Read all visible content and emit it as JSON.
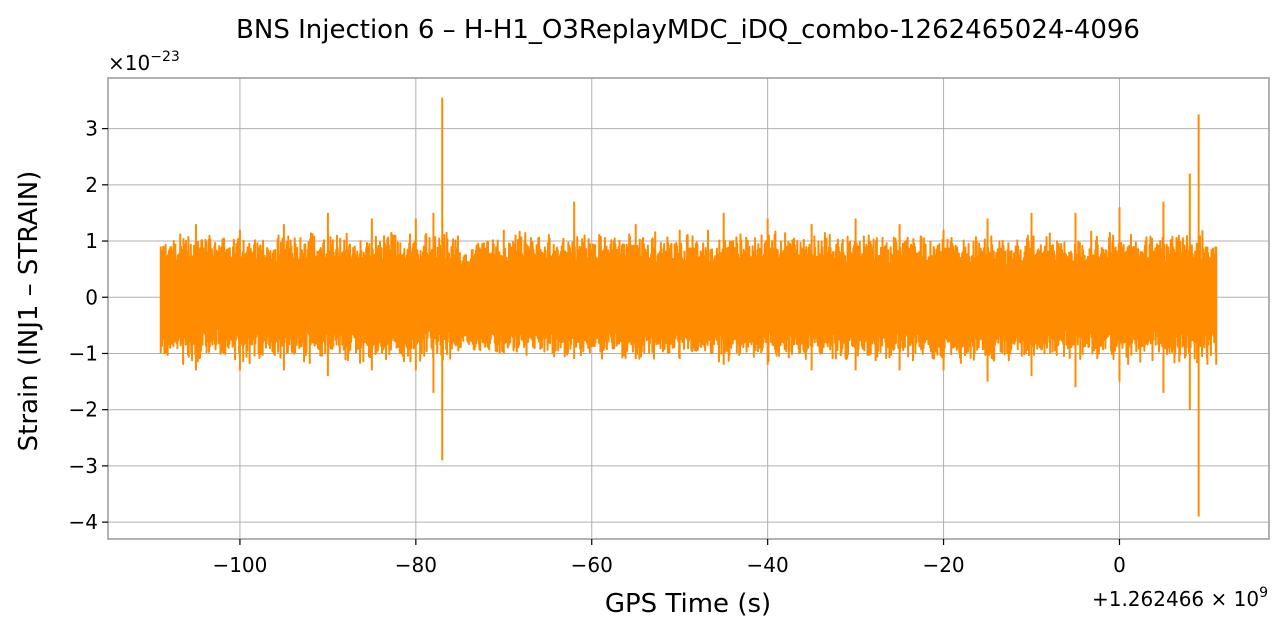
{
  "chart_data": {
    "type": "line",
    "title": "BNS Injection 6 – H-H1_O3ReplayMDC_iDQ_combo-1262465024-4096",
    "xlabel": "GPS Time (s)",
    "ylabel": "Strain (INJ1 – STRAIN)",
    "x_offset_label": "+1.262466 × 10",
    "x_offset_exponent": "9",
    "y_scale_label": "×10",
    "y_scale_exponent": "−23",
    "xlim": [
      -115,
      17
    ],
    "ylim": [
      -4.3,
      3.9
    ],
    "x_ticks": [
      -100,
      -80,
      -60,
      -40,
      -20,
      0
    ],
    "x_tick_labels": [
      "−100",
      "−80",
      "−60",
      "−40",
      "−20",
      "0"
    ],
    "y_ticks": [
      -4,
      -3,
      -2,
      -1,
      0,
      1,
      2,
      3
    ],
    "y_tick_labels": [
      "−4",
      "−3",
      "−2",
      "−1",
      "0",
      "1",
      "2",
      "3"
    ],
    "grid": true,
    "series": [
      {
        "color": "#ff8c00",
        "x_range": [
          -109,
          11
        ],
        "envelope": [
          {
            "x": -109,
            "upper": 0.9,
            "lower": -1.0
          },
          {
            "x": -105,
            "upper": 1.3,
            "lower": -1.3
          },
          {
            "x": -100,
            "upper": 1.2,
            "lower": -1.3
          },
          {
            "x": -95,
            "upper": 1.3,
            "lower": -1.3
          },
          {
            "x": -90,
            "upper": 1.5,
            "lower": -1.4
          },
          {
            "x": -85,
            "upper": 1.4,
            "lower": -1.3
          },
          {
            "x": -80,
            "upper": 1.4,
            "lower": -1.3
          },
          {
            "x": -78,
            "upper": 1.5,
            "lower": -1.7
          },
          {
            "x": -77,
            "upper": 3.55,
            "lower": -2.9
          },
          {
            "x": -75,
            "upper": 0.8,
            "lower": -0.9
          },
          {
            "x": -70,
            "upper": 1.2,
            "lower": -1.0
          },
          {
            "x": -62,
            "upper": 1.7,
            "lower": -1.1
          },
          {
            "x": -55,
            "upper": 1.3,
            "lower": -1.1
          },
          {
            "x": -50,
            "upper": 1.2,
            "lower": -1.1
          },
          {
            "x": -45,
            "upper": 1.5,
            "lower": -1.2
          },
          {
            "x": -40,
            "upper": 1.4,
            "lower": -1.2
          },
          {
            "x": -35,
            "upper": 1.3,
            "lower": -1.3
          },
          {
            "x": -30,
            "upper": 1.4,
            "lower": -1.3
          },
          {
            "x": -25,
            "upper": 1.3,
            "lower": -1.3
          },
          {
            "x": -20,
            "upper": 1.2,
            "lower": -1.3
          },
          {
            "x": -15,
            "upper": 1.4,
            "lower": -1.5
          },
          {
            "x": -10,
            "upper": 1.5,
            "lower": -1.4
          },
          {
            "x": -5,
            "upper": 1.5,
            "lower": -1.6
          },
          {
            "x": 0,
            "upper": 1.6,
            "lower": -1.5
          },
          {
            "x": 5,
            "upper": 1.7,
            "lower": -1.7
          },
          {
            "x": 8,
            "upper": 2.2,
            "lower": -2.0
          },
          {
            "x": 9,
            "upper": 3.25,
            "lower": -3.9
          },
          {
            "x": 10,
            "upper": 0.9,
            "lower": -1.2
          },
          {
            "x": 11,
            "upper": 0.9,
            "lower": -1.2
          }
        ]
      }
    ]
  }
}
